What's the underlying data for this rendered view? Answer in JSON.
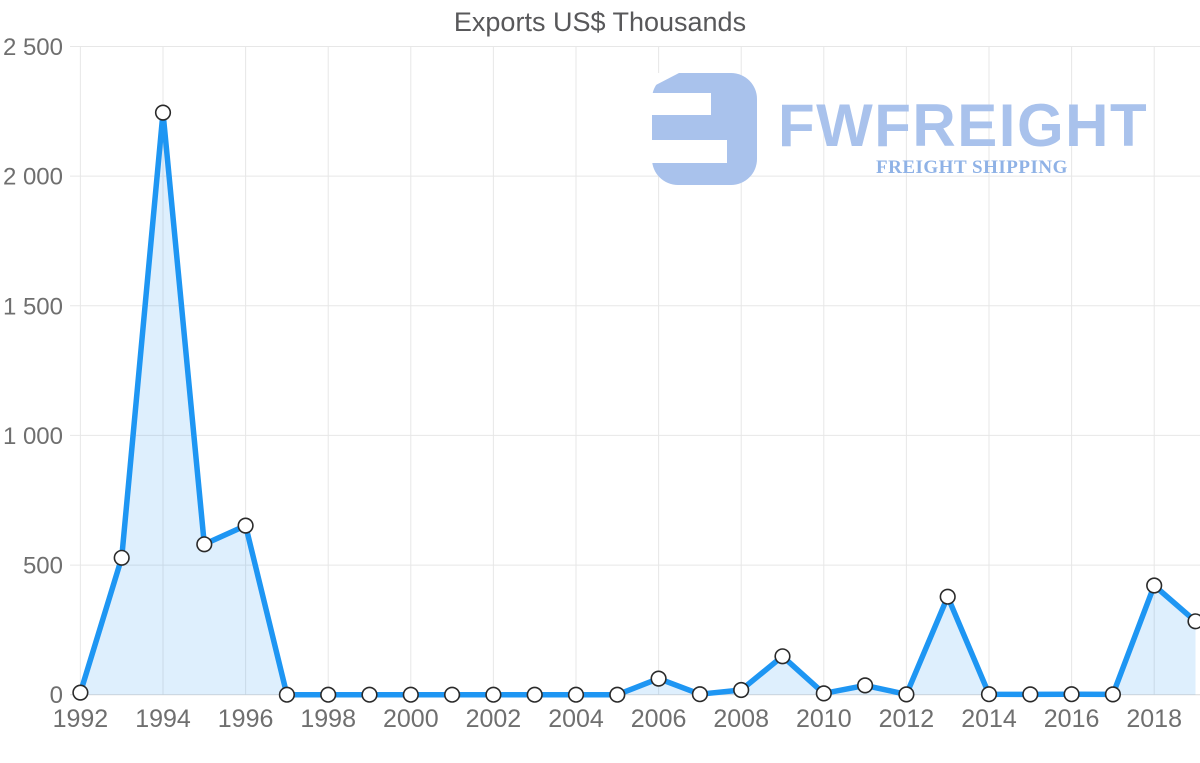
{
  "page": {
    "title": "Exports US$ Thousands"
  },
  "logo": {
    "brand": "FWFREIGHT",
    "tagline": "FREIGHT SHIPPING",
    "icon_color": "#a9c2ec",
    "brand_color": "#a9c2ec",
    "tagline_color": "#8fb2e6"
  },
  "chart_data": {
    "type": "area",
    "title": "Exports US$ Thousands",
    "x": [
      1992,
      1993,
      1994,
      1995,
      1996,
      1997,
      1998,
      1999,
      2000,
      2001,
      2002,
      2003,
      2004,
      2005,
      2006,
      2007,
      2008,
      2009,
      2010,
      2011,
      2012,
      2013,
      2014,
      2015,
      2016,
      2017,
      2018,
      2019
    ],
    "series": [
      {
        "name": "Exports US$ Thousands",
        "values": [
          8,
          528,
          2245,
          580,
          652,
          0,
          0,
          0,
          0,
          0,
          0,
          0,
          0,
          0,
          62,
          2,
          18,
          148,
          5,
          36,
          1,
          378,
          2,
          1,
          2,
          1,
          421,
          283
        ]
      }
    ],
    "ylim": [
      0,
      2500
    ],
    "yticks": [
      {
        "value": 0,
        "label": "0"
      },
      {
        "value": 500,
        "label": "500"
      },
      {
        "value": 1000,
        "label": "1 000"
      },
      {
        "value": 1500,
        "label": "1 500"
      },
      {
        "value": 2000,
        "label": "2 000"
      },
      {
        "value": 2500,
        "label": "2 500"
      }
    ],
    "xticks": [
      1992,
      1994,
      1996,
      1998,
      2000,
      2002,
      2004,
      2006,
      2008,
      2010,
      2012,
      2014,
      2016,
      2018
    ],
    "grid": true,
    "legend": "none",
    "colors": {
      "line": "#1e96f3",
      "fill": "rgba(33,150,243,0.15)",
      "marker_fill": "#ffffff",
      "marker_stroke": "#2a2a2a",
      "grid": "#e7e7e7",
      "axis": "#d9d9d9",
      "label": "#6f6f6f",
      "title": "#58585a"
    }
  }
}
